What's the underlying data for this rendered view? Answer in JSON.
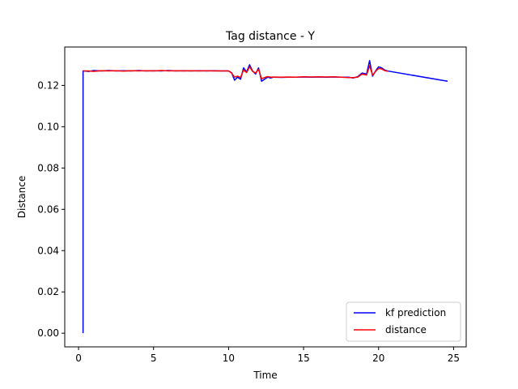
{
  "chart_data": {
    "type": "line",
    "title": "Tag distance - Y",
    "xlabel": "Time",
    "ylabel": "Distance",
    "xlim": [
      -0.92,
      25.84
    ],
    "ylim": [
      -0.0066,
      0.1386
    ],
    "xticks": [
      0,
      5,
      10,
      15,
      20,
      25
    ],
    "xtick_labels": [
      "0",
      "5",
      "10",
      "15",
      "20",
      "25"
    ],
    "yticks": [
      0.0,
      0.02,
      0.04,
      0.06,
      0.08,
      0.1,
      0.12
    ],
    "ytick_labels": [
      "0.00",
      "0.02",
      "0.04",
      "0.06",
      "0.08",
      "0.10",
      "0.12"
    ],
    "grid": false,
    "legend_position": "lower-right",
    "series": [
      {
        "name": "kf prediction",
        "color": "#0000ff",
        "x": [
          0.3,
          0.3,
          0.7,
          1.0,
          1.5,
          2.0,
          2.5,
          3.0,
          3.5,
          4.0,
          4.5,
          5.0,
          5.5,
          6.0,
          6.5,
          7.0,
          7.5,
          8.0,
          8.5,
          9.0,
          9.5,
          10.0,
          10.2,
          10.4,
          10.6,
          10.8,
          11.0,
          11.2,
          11.4,
          11.6,
          11.8,
          12.0,
          12.2,
          12.4,
          12.6,
          12.8,
          13.0,
          13.5,
          14.0,
          14.5,
          15.0,
          15.5,
          16.0,
          16.5,
          17.0,
          17.5,
          18.0,
          18.3,
          18.6,
          18.9,
          19.2,
          19.4,
          19.6,
          19.8,
          20.0,
          20.2,
          20.4,
          20.6,
          24.6
        ],
        "y": [
          0.0,
          0.127,
          0.1268,
          0.1272,
          0.127,
          0.1272,
          0.127,
          0.1271,
          0.127,
          0.1272,
          0.127,
          0.1271,
          0.127,
          0.1272,
          0.127,
          0.1271,
          0.127,
          0.1271,
          0.127,
          0.1271,
          0.127,
          0.127,
          0.1262,
          0.1225,
          0.124,
          0.123,
          0.1285,
          0.1265,
          0.13,
          0.127,
          0.1255,
          0.1285,
          0.122,
          0.123,
          0.124,
          0.1236,
          0.124,
          0.1239,
          0.124,
          0.124,
          0.1241,
          0.124,
          0.1241,
          0.124,
          0.1241,
          0.124,
          0.124,
          0.1236,
          0.1242,
          0.126,
          0.1255,
          0.132,
          0.1245,
          0.127,
          0.129,
          0.1285,
          0.1275,
          0.127,
          0.122
        ]
      },
      {
        "name": "distance",
        "color": "#ff0000",
        "x": [
          0.3,
          0.7,
          1.0,
          1.5,
          2.0,
          2.5,
          3.0,
          3.5,
          4.0,
          4.5,
          5.0,
          5.5,
          6.0,
          6.5,
          7.0,
          7.5,
          8.0,
          8.5,
          9.0,
          9.5,
          10.0,
          10.2,
          10.4,
          10.6,
          10.8,
          11.0,
          11.2,
          11.4,
          11.6,
          11.8,
          12.0,
          12.2,
          12.4,
          12.6,
          12.8,
          13.0,
          13.5,
          14.0,
          14.5,
          15.0,
          15.5,
          16.0,
          16.5,
          17.0,
          17.5,
          18.0,
          18.3,
          18.6,
          18.9,
          19.2,
          19.4,
          19.6,
          19.8,
          20.0,
          20.2,
          20.4,
          20.6
        ],
        "y": [
          0.127,
          0.127,
          0.1268,
          0.1271,
          0.127,
          0.1271,
          0.1269,
          0.1271,
          0.127,
          0.1271,
          0.127,
          0.1272,
          0.127,
          0.1271,
          0.127,
          0.1271,
          0.127,
          0.1271,
          0.127,
          0.127,
          0.127,
          0.126,
          0.124,
          0.1245,
          0.1238,
          0.1275,
          0.1262,
          0.129,
          0.1268,
          0.126,
          0.1278,
          0.1232,
          0.1238,
          0.1243,
          0.124,
          0.1241,
          0.124,
          0.1241,
          0.124,
          0.1242,
          0.1241,
          0.1242,
          0.1241,
          0.1242,
          0.124,
          0.1238,
          0.1238,
          0.124,
          0.1255,
          0.125,
          0.1295,
          0.125,
          0.1268,
          0.1282,
          0.128,
          0.1272,
          0.1268
        ]
      }
    ]
  }
}
